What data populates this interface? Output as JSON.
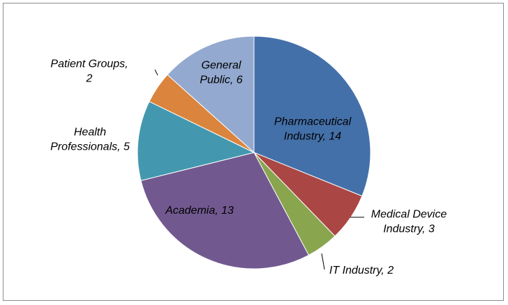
{
  "chart_data": {
    "type": "pie",
    "title": "",
    "slices": [
      {
        "name": "Pharmaceutical Industry",
        "value": 14,
        "color": "#4470A9",
        "label_lines": [
          "Pharmaceutical",
          "Industry, 14"
        ]
      },
      {
        "name": "Medical Device Industry",
        "value": 3,
        "color": "#AA4744",
        "label_lines": [
          "Medical Device",
          "Industry, 3"
        ]
      },
      {
        "name": "IT Industry",
        "value": 2,
        "color": "#89A54E",
        "label_lines": [
          "IT Industry, 2"
        ]
      },
      {
        "name": "Academia",
        "value": 13,
        "color": "#71598F",
        "label_lines": [
          "Academia, 13"
        ]
      },
      {
        "name": "Health Professionals",
        "value": 5,
        "color": "#4398AF",
        "label_lines": [
          "Health",
          "Professionals, 5"
        ]
      },
      {
        "name": "Patient Groups",
        "value": 2,
        "color": "#DB843D",
        "label_lines": [
          "Patient Groups,",
          "2"
        ]
      },
      {
        "name": "General Public",
        "value": 6,
        "color": "#93A9CF",
        "label_lines": [
          "General",
          "Public, 6"
        ]
      }
    ],
    "start_angle_deg": 0,
    "direction": "clockwise",
    "legend": "none",
    "data_labels": "category name and value"
  }
}
